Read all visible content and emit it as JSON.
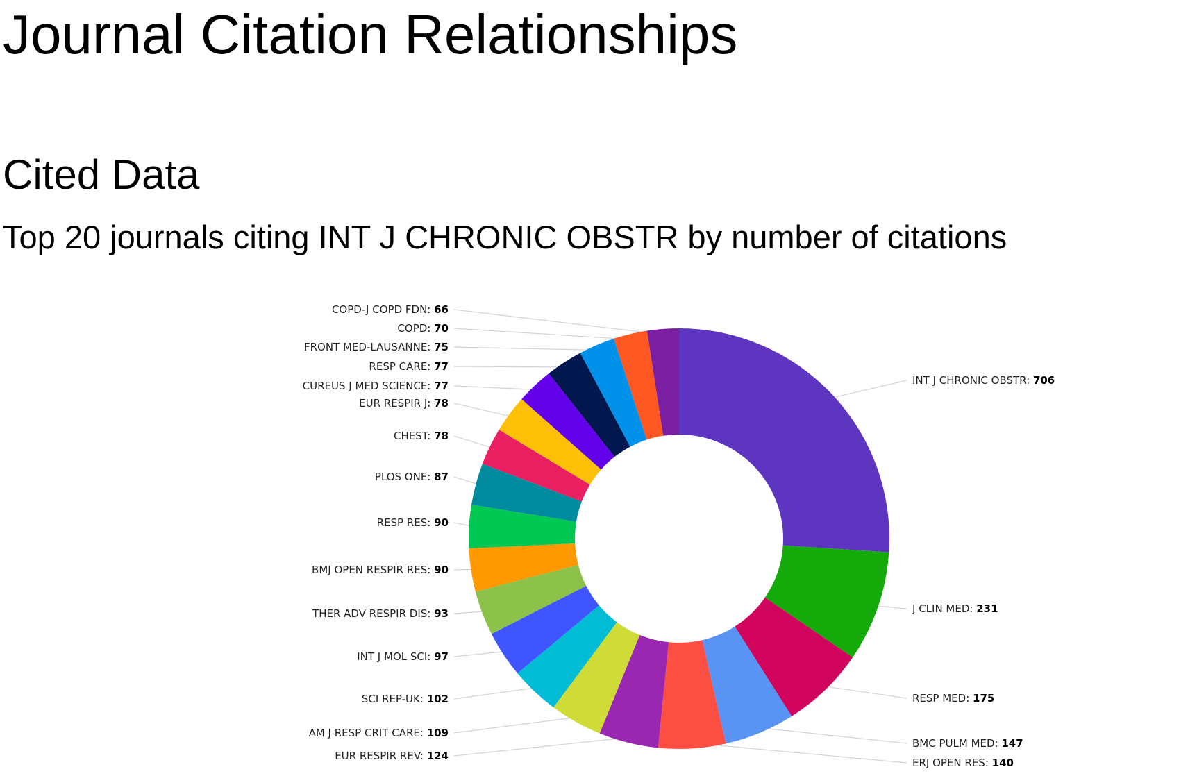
{
  "page": {
    "title": "Journal Citation Relationships",
    "section_title": "Cited Data",
    "subtitle": "Top 20 journals citing INT J CHRONIC OBSTR by number of citations"
  },
  "chart_data": {
    "type": "pie",
    "variant": "donut",
    "title": "Top 20 journals citing INT J CHRONIC OBSTR by number of citations",
    "label_separator": ": ",
    "slices": [
      {
        "label": "INT J CHRONIC OBSTR",
        "value": 706,
        "color": "#5e35c1"
      },
      {
        "label": "J CLIN MED",
        "value": 231,
        "color": "#14aa09"
      },
      {
        "label": "RESP MED",
        "value": 175,
        "color": "#d0045c"
      },
      {
        "label": "BMC PULM MED",
        "value": 147,
        "color": "#5993f4"
      },
      {
        "label": "ERJ OPEN RES",
        "value": 140,
        "color": "#fd4e43"
      },
      {
        "label": "EUR RESPIR REV",
        "value": 124,
        "color": "#9a27b0"
      },
      {
        "label": "AM J RESP CRIT CARE",
        "value": 109,
        "color": "#cfdc37"
      },
      {
        "label": "SCI REP-UK",
        "value": 102,
        "color": "#01bcd4"
      },
      {
        "label": "INT J MOL SCI",
        "value": 97,
        "color": "#3e55ff"
      },
      {
        "label": "THER ADV RESPIR DIS",
        "value": 93,
        "color": "#8dc24a"
      },
      {
        "label": "BMJ OPEN RESPIR RES",
        "value": 90,
        "color": "#fe9901"
      },
      {
        "label": "RESP RES",
        "value": 90,
        "color": "#01c853"
      },
      {
        "label": "PLOS ONE",
        "value": 87,
        "color": "#008c9e"
      },
      {
        "label": "CHEST",
        "value": 78,
        "color": "#e91f62"
      },
      {
        "label": "EUR RESPIR J",
        "value": 78,
        "color": "#fec007"
      },
      {
        "label": "CUREUS J MED SCIENCE",
        "value": 77,
        "color": "#6200ea"
      },
      {
        "label": "RESP CARE",
        "value": 77,
        "color": "#02174e"
      },
      {
        "label": "FRONT MED-LAUSANNE",
        "value": 75,
        "color": "#0091ea"
      },
      {
        "label": "COPD",
        "value": 70,
        "color": "#ff5722"
      },
      {
        "label": "COPD-J COPD FDN",
        "value": 66,
        "color": "#7b1fa2"
      }
    ],
    "legend": "none",
    "grid": false
  }
}
